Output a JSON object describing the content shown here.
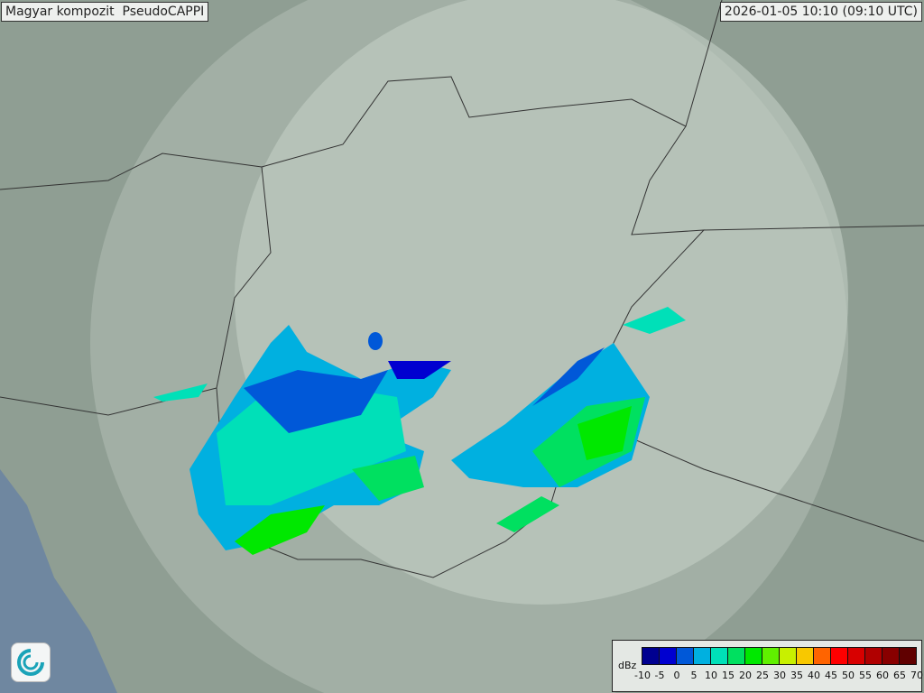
{
  "header": {
    "title": "Magyar kompozit  PseudoCAPPI",
    "timestamp": "2026-01-05 10:10 (09:10 UTC)"
  },
  "legend": {
    "unit": "dBz",
    "ticks": [
      "-10",
      "-5",
      "0",
      "5",
      "10",
      "15",
      "20",
      "25",
      "30",
      "35",
      "40",
      "45",
      "50",
      "55",
      "60",
      "65",
      "70"
    ],
    "colors": [
      "#000090",
      "#0000d0",
      "#0058d8",
      "#00b0e0",
      "#00e0b8",
      "#00e060",
      "#00e800",
      "#60f000",
      "#c8f000",
      "#f8c800",
      "#ff6400",
      "#ff0000",
      "#d80000",
      "#b00000",
      "#880000",
      "#600000"
    ]
  },
  "map": {
    "background_color": "#8f9e93",
    "radar_coverage_color": "#b9c6bc",
    "logo_icon": "omsz-logo-icon"
  }
}
